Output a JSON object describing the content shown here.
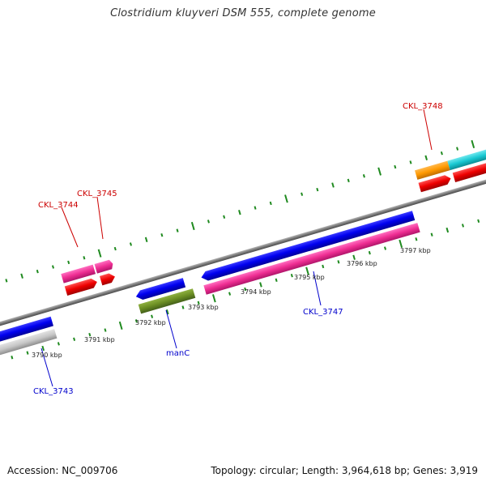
{
  "header": {
    "title": "Clostridium kluyveri DSM 555, complete genome"
  },
  "footer": {
    "accession": "Accession: NC_009706",
    "summary": "Topology: circular; Length: 3,964,618 bp; Genes: 3,919"
  },
  "colors": {
    "backbone": "#8a8a8a",
    "tick": "#1f8a1f",
    "cds_blue": "#0a0ae6",
    "cds_pink": "#ee2d92",
    "cds_red": "#ee0000",
    "cds_green": "#6b8e23",
    "cds_gray": "#c6c6c6",
    "cds_orange": "#ff9900",
    "cds_cyan": "#19c8d2",
    "label_forward": "#cc0000",
    "label_reverse": "#0000cc"
  },
  "scale_labels": [
    "3790 kbp",
    "3791 kbp",
    "3792 kbp",
    "3793 kbp",
    "3794 kbp",
    "3795 kbp",
    "3796 kbp",
    "3797 kbp"
  ],
  "genes": {
    "forward_labels": [
      "CKL_3744",
      "CKL_3745",
      "CKL_3748"
    ],
    "reverse_labels": [
      "CKL_3743",
      "manC",
      "CKL_3747"
    ]
  }
}
